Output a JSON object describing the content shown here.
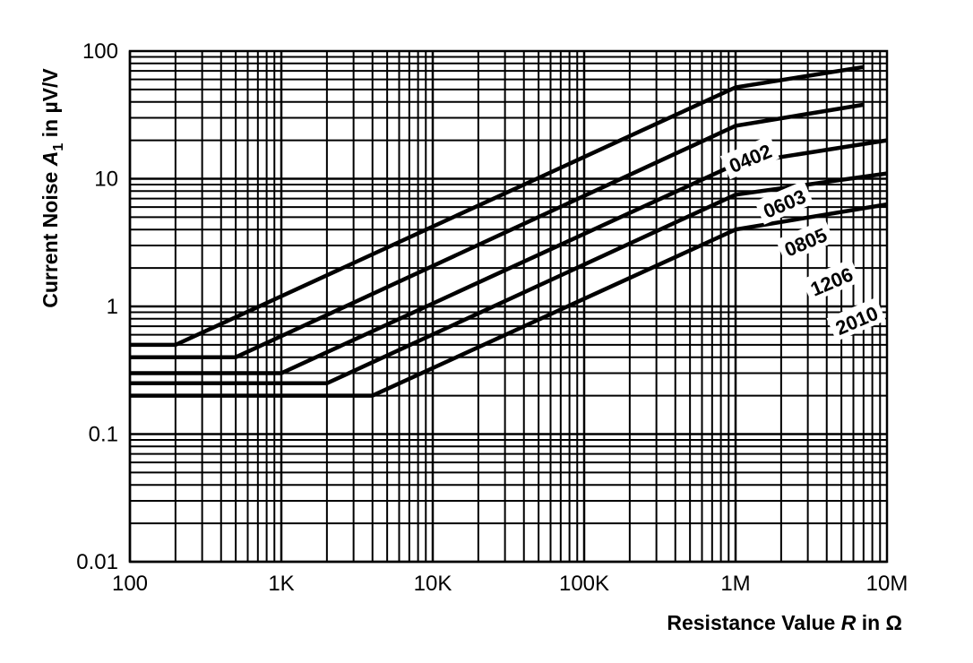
{
  "chart_data": {
    "type": "line",
    "x_scale": "log",
    "y_scale": "log",
    "xlim": [
      100,
      10000000
    ],
    "ylim": [
      0.01,
      100
    ],
    "grid": true,
    "xlabel": {
      "prefix": "Resistance Value ",
      "symbol": "R",
      "suffix": " in Ω"
    },
    "ylabel": {
      "prefix": "Current Noise ",
      "symbol": "A",
      "subscript": "1",
      "suffix": " in µV/V"
    },
    "x_ticks": [
      {
        "value": 100,
        "label": "100"
      },
      {
        "value": 1000,
        "label": "1K"
      },
      {
        "value": 10000,
        "label": "10K"
      },
      {
        "value": 100000,
        "label": "100K"
      },
      {
        "value": 1000000,
        "label": "1M"
      },
      {
        "value": 10000000,
        "label": "10M"
      }
    ],
    "y_ticks": [
      {
        "value": 0.01,
        "label": "0.01"
      },
      {
        "value": 0.1,
        "label": "0.1"
      },
      {
        "value": 1,
        "label": "1"
      },
      {
        "value": 10,
        "label": "10"
      },
      {
        "value": 100,
        "label": "100"
      }
    ],
    "series": [
      {
        "name": "0402",
        "points": [
          [
            100,
            0.5
          ],
          [
            200,
            0.5
          ],
          [
            1000000,
            52
          ],
          [
            7000000,
            75
          ]
        ],
        "label_at": [
          1250000,
          14.5
        ],
        "label_angle": -23
      },
      {
        "name": "0603",
        "points": [
          [
            100,
            0.4
          ],
          [
            500,
            0.4
          ],
          [
            1000000,
            26
          ],
          [
            7000000,
            38
          ]
        ],
        "label_at": [
          2100000,
          6.4
        ],
        "label_angle": -23
      },
      {
        "name": "0805",
        "points": [
          [
            100,
            0.3
          ],
          [
            1000,
            0.3
          ],
          [
            1000000,
            13
          ],
          [
            10000000,
            20
          ]
        ],
        "label_at": [
          2900000,
          3.2
        ],
        "label_angle": -23
      },
      {
        "name": "1206",
        "points": [
          [
            100,
            0.25
          ],
          [
            2000,
            0.25
          ],
          [
            1000000,
            7.5
          ],
          [
            10000000,
            11
          ]
        ],
        "label_at": [
          4300000,
          1.57
        ],
        "label_angle": -23
      },
      {
        "name": "2010",
        "points": [
          [
            100,
            0.2
          ],
          [
            4000,
            0.2
          ],
          [
            1000000,
            4
          ],
          [
            10000000,
            6.3
          ]
        ],
        "label_at": [
          6300000,
          0.78
        ],
        "label_angle": -23
      }
    ]
  }
}
